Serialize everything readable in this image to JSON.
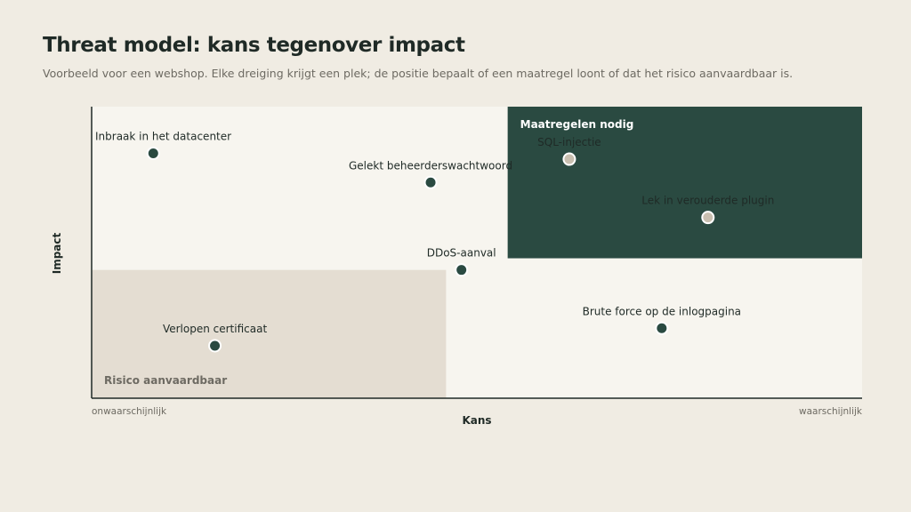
{
  "header": {
    "title": "Threat model: kans tegenover impact",
    "subtitle": "Voorbeeld voor een webshop. Elke dreiging krijgt een plek; de positie bepaalt of een maatregel loont of dat het risico aanvaardbaar is."
  },
  "chart_data": {
    "type": "scatter",
    "xlabel": "Kans",
    "ylabel": "Impact",
    "xlim": [
      0,
      1
    ],
    "ylim": [
      0,
      1
    ],
    "x_ticks": [
      {
        "value": 0,
        "label": "onwaarschijnlijk"
      },
      {
        "value": 1,
        "label": "waarschijnlijk"
      }
    ],
    "grid": false,
    "colors": {
      "point_default": "#2a4a41",
      "point_highlight": "#c9bfb0",
      "zone_action": "#2a4a41",
      "zone_accept": "#e4ddd2",
      "plot_bg": "#f7f5ef"
    },
    "zones": [
      {
        "label": "Maatregelen nodig",
        "x_range": [
          0.54,
          1.0
        ],
        "y_range": [
          0.48,
          1.0
        ],
        "color": "#2a4a41",
        "label_color": "#ffffff"
      },
      {
        "label": "Risico aanvaardbaar",
        "x_range": [
          0.0,
          0.46
        ],
        "y_range": [
          0.0,
          0.44
        ],
        "color": "#e4ddd2",
        "label_color": "#6d6a62"
      }
    ],
    "points": [
      {
        "label": "Inbraak in het datacenter",
        "x": 0.08,
        "y": 0.84,
        "highlight": false
      },
      {
        "label": "Gelekt beheerderswachtwoord",
        "x": 0.44,
        "y": 0.74,
        "highlight": false
      },
      {
        "label": "SQL-injectie",
        "x": 0.62,
        "y": 0.82,
        "highlight": true
      },
      {
        "label": "Lek in verouderde plugin",
        "x": 0.8,
        "y": 0.62,
        "highlight": true
      },
      {
        "label": "DDoS-aanval",
        "x": 0.48,
        "y": 0.44,
        "highlight": false
      },
      {
        "label": "Brute force op de inlogpagina",
        "x": 0.74,
        "y": 0.24,
        "highlight": false
      },
      {
        "label": "Verlopen certificaat",
        "x": 0.16,
        "y": 0.18,
        "highlight": false
      }
    ]
  }
}
